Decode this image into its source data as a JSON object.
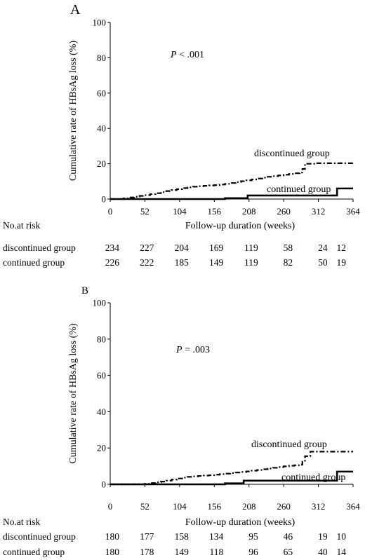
{
  "chart_data": [
    {
      "type": "line",
      "panel_label": "A",
      "xlabel": "Follow-up duration (weeks)",
      "ylabel": "Cumulative rate of HBsAg loss (%)",
      "xlim": [
        0,
        364
      ],
      "ylim": [
        0,
        100
      ],
      "x_ticks": [
        0,
        52,
        104,
        156,
        208,
        260,
        312,
        364
      ],
      "y_ticks": [
        0,
        20,
        40,
        60,
        80,
        100
      ],
      "grid": false,
      "annotation": {
        "prefix": "P",
        "text": " < .001"
      },
      "series": [
        {
          "name": "discontinued group",
          "style": "dash-dot",
          "color": "#000000",
          "x": [
            0,
            20,
            28,
            36,
            44,
            52,
            60,
            68,
            76,
            84,
            92,
            100,
            108,
            116,
            124,
            132,
            140,
            148,
            156,
            164,
            172,
            180,
            188,
            196,
            204,
            212,
            220,
            228,
            236,
            244,
            252,
            260,
            268,
            276,
            284,
            288,
            292,
            308,
            364
          ],
          "y": [
            0,
            0.4,
            0.9,
            1.3,
            1.8,
            2.2,
            2.8,
            3.3,
            3.9,
            4.5,
            5.1,
            5.6,
            6.2,
            6.6,
            7.0,
            7.3,
            7.5,
            7.7,
            7.9,
            8.2,
            8.6,
            9.1,
            9.6,
            10.1,
            10.6,
            11.1,
            11.6,
            12.1,
            12.6,
            13.0,
            13.4,
            13.8,
            14.2,
            14.6,
            15.0,
            17.0,
            20.0,
            20.3,
            20.3
          ]
        },
        {
          "name": "continued group",
          "style": "solid",
          "color": "#000000",
          "x": [
            0,
            172,
            206,
            340,
            364
          ],
          "y": [
            0,
            0.5,
            2.0,
            6.0,
            6.0
          ]
        }
      ],
      "risk_table": {
        "title": "No.at risk",
        "rows": [
          {
            "label": "discontinued group",
            "values": [
              234,
              227,
              204,
              169,
              119,
              58,
              24,
              12
            ]
          },
          {
            "label": "continued group",
            "values": [
              226,
              222,
              185,
              149,
              119,
              82,
              50,
              19
            ]
          }
        ]
      }
    },
    {
      "type": "line",
      "panel_label": "B",
      "xlabel": "Follow-up duration (weeks)",
      "ylabel": "Cumulative rate of HBsAg loss (%)",
      "xlim": [
        0,
        364
      ],
      "ylim": [
        0,
        100
      ],
      "x_ticks": [
        0,
        52,
        104,
        156,
        208,
        260,
        312,
        364
      ],
      "y_ticks": [
        0,
        20,
        40,
        60,
        80,
        100
      ],
      "grid": false,
      "annotation": {
        "prefix": "P",
        "text": " = .003"
      },
      "series": [
        {
          "name": "discontinued group",
          "style": "dash-dot",
          "color": "#000000",
          "x": [
            0,
            52,
            60,
            68,
            76,
            84,
            92,
            100,
            108,
            116,
            124,
            132,
            140,
            148,
            156,
            164,
            172,
            180,
            188,
            196,
            204,
            212,
            220,
            228,
            236,
            244,
            252,
            260,
            268,
            276,
            284,
            288,
            292,
            300,
            364
          ],
          "y": [
            0,
            0.3,
            0.7,
            1.1,
            1.5,
            2.0,
            2.6,
            3.2,
            3.7,
            4.1,
            4.4,
            4.6,
            4.8,
            5.0,
            5.3,
            5.6,
            5.9,
            6.2,
            6.5,
            6.8,
            7.1,
            7.5,
            7.9,
            8.3,
            8.7,
            9.1,
            9.5,
            9.9,
            10.2,
            10.5,
            10.8,
            13.0,
            15.5,
            18.0,
            18.0
          ]
        },
        {
          "name": "continued group",
          "style": "solid",
          "color": "#000000",
          "x": [
            0,
            172,
            200,
            340,
            364
          ],
          "y": [
            0,
            0.5,
            2.0,
            7.0,
            7.0
          ]
        }
      ],
      "risk_table": {
        "title": "No.at risk",
        "rows": [
          {
            "label": "discontinued group",
            "values": [
              180,
              177,
              158,
              134,
              95,
              46,
              19,
              10
            ]
          },
          {
            "label": "continued group",
            "values": [
              180,
              178,
              149,
              118,
              96,
              65,
              40,
              14
            ]
          }
        ]
      }
    }
  ]
}
